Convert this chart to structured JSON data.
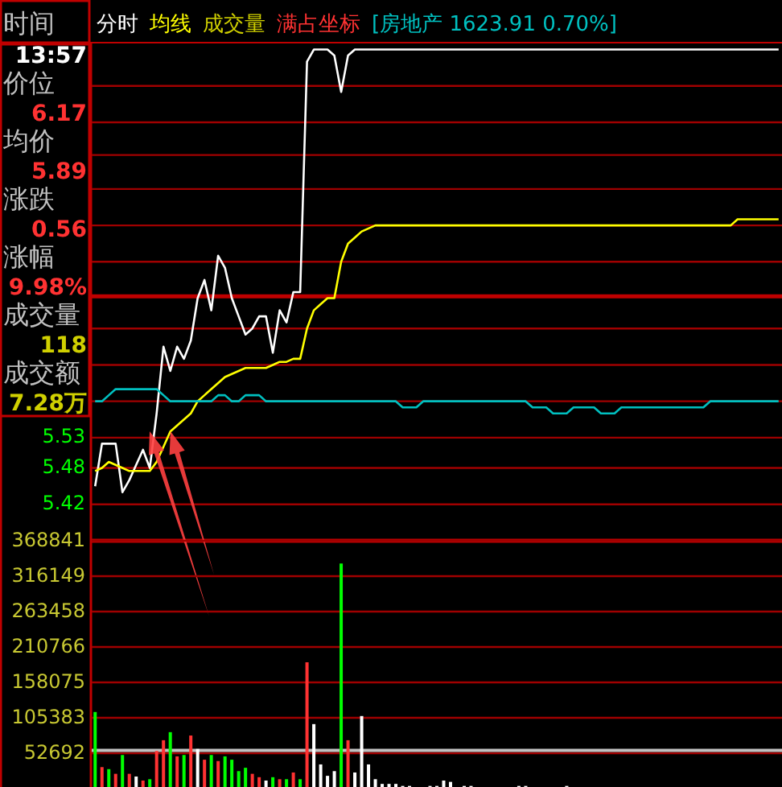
{
  "chart_data": [
    {
      "type": "other",
      "annotations": [
        "时间",
        "13:57",
        "价位",
        "6.17",
        "均价",
        "5.89",
        "涨跌",
        "0.56",
        "涨幅",
        "9.98%",
        "成交量",
        "118",
        "成交额",
        "7.28万"
      ],
      "colors": [
        "#c0c0c0",
        "#ffffff",
        "#c0c0c0",
        "#ff3232",
        "#c0c0c0",
        "#ff3232",
        "#c0c0c0",
        "#ff3232",
        "#c0c0c0",
        "#ff3232",
        "#c0c0c0",
        "#d0d000",
        "#c0c0c0",
        "#d0d000"
      ]
    },
    {
      "type": "line",
      "annotations": [
        "分时",
        "成交量",
        "满占坐标"
      ],
      "ylim": [
        5.36,
        6.18
      ],
      "tick_labels": "y",
      "grid": "y",
      "categories": [
        null,
        null,
        null,
        null,
        null,
        null,
        null,
        null,
        null,
        null,
        null,
        null,
        null,
        null,
        null,
        null,
        null,
        null,
        null,
        null,
        null,
        null,
        null,
        null,
        null,
        null,
        null,
        null,
        null,
        null,
        null,
        null,
        null,
        null,
        null,
        null,
        null,
        null,
        null,
        null,
        null,
        null,
        null,
        null,
        null,
        null,
        null,
        null,
        null,
        null,
        null,
        null,
        null,
        null,
        null,
        null,
        null,
        null,
        null,
        null,
        null,
        null,
        null,
        null,
        null,
        null,
        null,
        null,
        null,
        null,
        null,
        null,
        null,
        null,
        null,
        null,
        null,
        null,
        null,
        null,
        null,
        null,
        null,
        null,
        null,
        null,
        null,
        null,
        null,
        null,
        null,
        null,
        null,
        null,
        null,
        null,
        null,
        null,
        null,
        null,
        null
      ],
      "yticks": [
        {
          "value": 6.11,
          "label": null
        },
        {
          "value": 6.05,
          "label": null
        },
        {
          "value": 5.996,
          "label": null
        },
        {
          "value": 5.94,
          "label": null
        },
        {
          "value": 5.88,
          "label": null
        },
        {
          "value": 5.82,
          "label": null
        },
        {
          "value": 5.763,
          "label": null
        },
        {
          "value": 5.71,
          "label": null
        },
        {
          "value": 5.65,
          "label": null
        },
        {
          "value": 5.59,
          "label": null
        },
        5.53,
        5.48,
        5.42
      ],
      "ref_lines": [
        {
          "axis": "y",
          "value": 5.763,
          "color": "#c00000"
        }
      ],
      "series": [
        {
          "color": "#ffffff",
          "values": [
            5.45,
            5.52,
            5.52,
            5.52,
            5.44,
            5.46,
            5.485,
            5.51,
            5.48,
            5.57,
            5.68,
            5.64,
            5.68,
            5.66,
            5.69,
            5.76,
            5.79,
            5.74,
            5.83,
            5.81,
            5.76,
            5.73,
            5.7,
            5.71,
            5.73,
            5.73,
            5.67,
            5.74,
            5.72,
            5.77,
            5.77,
            6.15,
            6.17,
            6.17,
            6.17,
            6.16,
            6.1,
            6.16,
            6.17,
            6.17,
            6.17,
            6.17,
            6.17,
            6.17,
            6.17,
            6.17,
            6.17,
            6.17,
            6.17,
            6.17,
            6.17,
            6.17,
            6.17,
            6.17,
            6.17,
            6.17,
            6.17,
            6.17,
            6.17,
            6.17,
            6.17,
            6.17,
            6.17,
            6.17,
            6.17,
            6.17,
            6.17,
            6.17,
            6.17,
            6.17,
            6.17,
            6.17,
            6.17,
            6.17,
            6.17,
            6.17,
            6.17,
            6.17,
            6.17,
            6.17,
            6.17,
            6.17,
            6.17,
            6.17,
            6.17,
            6.17,
            6.17,
            6.17,
            6.17,
            6.17,
            6.17,
            6.17,
            6.17,
            6.17,
            6.17,
            6.17,
            6.17,
            6.17,
            6.17,
            6.17,
            6.17
          ]
        },
        {
          "name": "均线",
          "color": "#ffff00",
          "values": [
            5.475,
            5.48,
            5.49,
            5.485,
            5.48,
            5.475,
            5.475,
            5.475,
            5.475,
            5.49,
            5.515,
            5.54,
            5.55,
            5.56,
            5.57,
            5.59,
            5.6,
            5.61,
            5.62,
            5.63,
            5.635,
            5.64,
            5.645,
            5.645,
            5.645,
            5.645,
            5.65,
            5.655,
            5.655,
            5.66,
            5.66,
            5.71,
            5.74,
            5.75,
            5.76,
            5.76,
            5.82,
            5.85,
            5.86,
            5.87,
            5.875,
            5.88,
            5.88,
            5.88,
            5.88,
            5.88,
            5.88,
            5.88,
            5.88,
            5.88,
            5.88,
            5.88,
            5.88,
            5.88,
            5.88,
            5.88,
            5.88,
            5.88,
            5.88,
            5.88,
            5.88,
            5.88,
            5.88,
            5.88,
            5.88,
            5.88,
            5.88,
            5.88,
            5.88,
            5.88,
            5.88,
            5.88,
            5.88,
            5.88,
            5.88,
            5.88,
            5.88,
            5.88,
            5.88,
            5.88,
            5.88,
            5.88,
            5.88,
            5.88,
            5.88,
            5.88,
            5.88,
            5.88,
            5.88,
            5.88,
            5.88,
            5.88,
            5.88,
            5.88,
            5.89,
            5.89,
            5.89,
            5.89,
            5.89,
            5.89,
            5.89
          ]
        },
        {
          "name": "[房地产 1623.91 0.70%]",
          "color": "#00c0c0",
          "values": [
            5.59,
            5.59,
            5.6,
            5.61,
            5.61,
            5.61,
            5.61,
            5.61,
            5.61,
            5.61,
            5.6,
            5.59,
            5.59,
            5.59,
            5.59,
            5.59,
            5.59,
            5.59,
            5.6,
            5.6,
            5.59,
            5.59,
            5.6,
            5.6,
            5.6,
            5.59,
            5.59,
            5.59,
            5.59,
            5.59,
            5.59,
            5.59,
            5.59,
            5.59,
            5.59,
            5.59,
            5.59,
            5.59,
            5.59,
            5.59,
            5.59,
            5.59,
            5.59,
            5.59,
            5.59,
            5.58,
            5.58,
            5.58,
            5.59,
            5.59,
            5.59,
            5.59,
            5.59,
            5.59,
            5.59,
            5.59,
            5.59,
            5.59,
            5.59,
            5.59,
            5.59,
            5.59,
            5.59,
            5.59,
            5.58,
            5.58,
            5.58,
            5.57,
            5.57,
            5.57,
            5.58,
            5.58,
            5.58,
            5.58,
            5.57,
            5.57,
            5.57,
            5.58,
            5.58,
            5.58,
            5.58,
            5.58,
            5.58,
            5.58,
            5.58,
            5.58,
            5.58,
            5.58,
            5.58,
            5.58,
            5.59,
            5.59,
            5.59,
            5.59,
            5.59,
            5.59,
            5.59,
            5.59,
            5.59,
            5.59,
            5.59
          ]
        }
      ]
    },
    {
      "type": "bar",
      "ylim": [
        0,
        368841
      ],
      "tick_labels": "y",
      "grid": "y",
      "categories": [
        null,
        null,
        null,
        null,
        null,
        null,
        null,
        null,
        null,
        null,
        null,
        null,
        null,
        null,
        null,
        null,
        null,
        null,
        null,
        null,
        null,
        null,
        null,
        null,
        null,
        null,
        null,
        null,
        null,
        null,
        null,
        null,
        null,
        null,
        null,
        null,
        null,
        null,
        null,
        null,
        null,
        null,
        null,
        null,
        null,
        null,
        null,
        null,
        null,
        null,
        null,
        null,
        null,
        null,
        null,
        null,
        null,
        null,
        null,
        null,
        null,
        null,
        null,
        null,
        null,
        null,
        null,
        null,
        null,
        null,
        null,
        null,
        null,
        null,
        null,
        null,
        null,
        null,
        null,
        null,
        null,
        null,
        null,
        null,
        null,
        null,
        null,
        null,
        null,
        null,
        null,
        null,
        null,
        null,
        null,
        null,
        null,
        null,
        null,
        null,
        null
      ],
      "yticks": [
        368841,
        316149,
        263458,
        210766,
        158075,
        105383,
        52692
      ],
      "ref_lines": [
        {
          "axis": "y",
          "value": 57000,
          "color": "#c0c0c0"
        }
      ],
      "values": [
        114000,
        32000,
        29000,
        22000,
        50000,
        22000,
        18000,
        12000,
        14000,
        56000,
        72000,
        84000,
        48000,
        50000,
        79000,
        59000,
        43000,
        50000,
        41000,
        48000,
        43000,
        26000,
        31000,
        22000,
        17000,
        12000,
        17000,
        14000,
        14000,
        24000,
        14000,
        188000,
        96000,
        36000,
        19000,
        26000,
        335000,
        72000,
        24000,
        108000,
        36000,
        14000,
        7000,
        7000,
        7000,
        4000,
        4000,
        0,
        0,
        4000,
        4000,
        12000,
        10000,
        0,
        4000,
        4000,
        0,
        0,
        0,
        0,
        0,
        0,
        4000,
        4000,
        0,
        0,
        0,
        0,
        0,
        4000,
        0,
        0,
        0,
        0,
        0,
        0,
        0,
        0,
        0,
        0,
        0,
        0,
        0,
        0,
        0,
        0,
        0,
        0,
        0,
        0,
        0,
        0,
        0,
        0,
        0,
        0,
        0,
        0,
        0,
        0,
        0
      ],
      "colors": [
        "#00ff00",
        "#ff3232",
        "#00ff00",
        "#ff3232",
        "#00ff00",
        "#ff3232",
        "#ffffff",
        "#ff3232",
        "#00ff00",
        "#ff3232",
        "#ff3232",
        "#00ff00",
        "#ff3232",
        "#00ff00",
        "#ff3232",
        "#ffffff",
        "#ff3232",
        "#00ff00",
        "#ff3232",
        "#00ff00",
        "#00ff00",
        "#00ff00",
        "#00ff00",
        "#ff3232",
        "#ff3232",
        "#ffffff",
        "#00ff00",
        "#ff3232",
        "#00ff00",
        "#ff3232",
        "#00ff00",
        "#ff3232",
        "#ffffff",
        "#ffffff",
        "#ffffff",
        "#ffffff",
        "#00ff00",
        "#ff3232",
        "#ffffff",
        "#ffffff",
        "#ffffff",
        "#ffffff",
        "#ffffff",
        "#ffffff",
        "#ffffff",
        "#ffffff",
        "#ffffff",
        "#ffffff",
        "#ffffff",
        "#ffffff",
        "#ffffff",
        "#ffffff",
        "#ffffff",
        "#ffffff",
        "#ffffff",
        "#ffffff",
        "#ffffff",
        "#ffffff",
        "#ffffff",
        "#ffffff",
        "#ffffff",
        "#ffffff",
        "#ffffff",
        "#ffffff",
        "#ffffff",
        "#ffffff",
        "#ffffff",
        "#ffffff",
        "#ffffff",
        "#ffffff",
        "#ffffff",
        "#ffffff",
        "#ffffff",
        "#ffffff",
        "#ffffff",
        "#ffffff",
        "#ffffff",
        "#ffffff",
        "#ffffff",
        "#ffffff",
        "#ffffff",
        "#ffffff",
        "#ffffff",
        "#ffffff",
        "#ffffff",
        "#ffffff",
        "#ffffff",
        "#ffffff",
        "#ffffff",
        "#ffffff",
        "#ffffff",
        "#ffffff",
        "#ffffff",
        "#ffffff",
        "#ffffff",
        "#ffffff",
        "#ffffff",
        "#ffffff",
        "#ffffff",
        "#ffffff",
        "#ffffff"
      ]
    }
  ]
}
